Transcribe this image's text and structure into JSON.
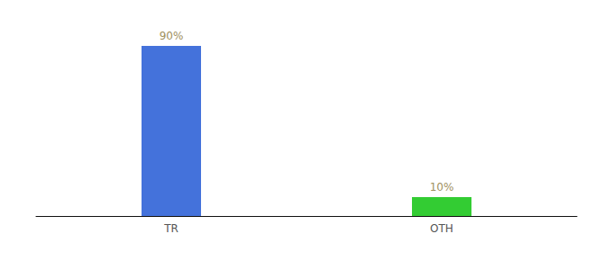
{
  "chart_data": {
    "type": "bar",
    "categories": [
      "TR",
      "OTH"
    ],
    "values": [
      90,
      10
    ],
    "value_labels": [
      "90%",
      "10%"
    ],
    "data_labels": true,
    "colors": [
      "#4472db",
      "#33cc33"
    ],
    "ylim": [
      0,
      100
    ],
    "tick_labels": "x",
    "grid": false
  }
}
